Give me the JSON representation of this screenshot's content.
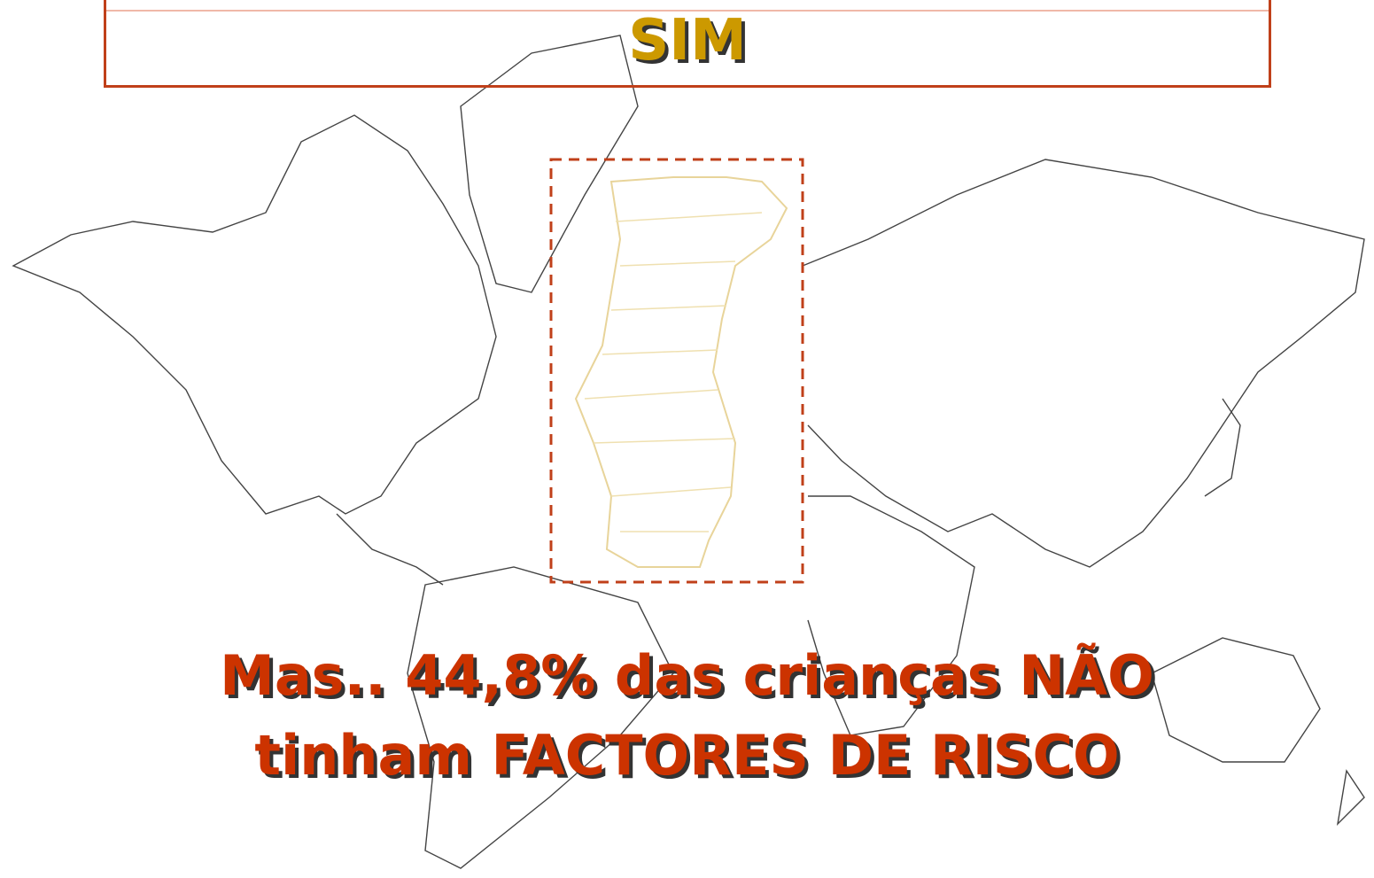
{
  "header": {
    "title": "SIM"
  },
  "message": {
    "lines": [
      "Mas.. 44,8% das crianças NÃO",
      "tinham FACTORES DE RISCO"
    ]
  }
}
